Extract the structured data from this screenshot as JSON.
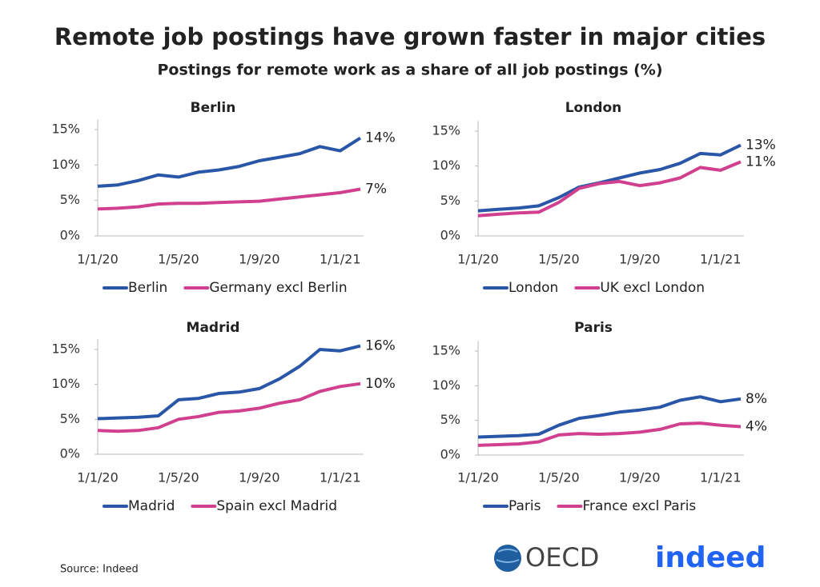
{
  "title": "Remote job postings have grown faster in major cities",
  "subtitle": "Postings for remote work as a share of all job postings (%)",
  "source": "Source: Indeed",
  "logos": [
    "OECD",
    "indeed"
  ],
  "chart_data": [
    {
      "type": "line",
      "title": "Berlin",
      "categories": [
        "1/1/20",
        null,
        null,
        null,
        "1/5/20",
        null,
        null,
        null,
        "1/9/20",
        null,
        null,
        null,
        "1/1/21",
        null
      ],
      "ylim": [
        0,
        16
      ],
      "yticks": [
        {
          "value": 0,
          "label": "0%"
        },
        {
          "value": 5,
          "label": "5%"
        },
        {
          "value": 10,
          "label": "10%"
        },
        {
          "value": 15,
          "label": "15%"
        }
      ],
      "series": [
        {
          "name": "Berlin",
          "color": "#2a56a8",
          "values": [
            7.0,
            7.2,
            7.8,
            8.6,
            8.3,
            9.0,
            9.3,
            9.8,
            10.6,
            11.1,
            11.6,
            12.6,
            12.0,
            13.8
          ],
          "value_labels": [
            null,
            null,
            null,
            null,
            null,
            null,
            null,
            null,
            null,
            null,
            null,
            null,
            null,
            "14%"
          ]
        },
        {
          "name": "Germany excl Berlin",
          "color": "#d0408f",
          "values": [
            3.8,
            3.9,
            4.1,
            4.5,
            4.6,
            4.6,
            4.7,
            4.8,
            4.9,
            5.2,
            5.5,
            5.8,
            6.1,
            6.6
          ],
          "value_labels": [
            null,
            null,
            null,
            null,
            null,
            null,
            null,
            null,
            null,
            null,
            null,
            null,
            null,
            "7%"
          ]
        }
      ]
    },
    {
      "type": "line",
      "title": "London",
      "categories": [
        "1/1/20",
        null,
        null,
        null,
        "1/5/20",
        null,
        null,
        null,
        "1/9/20",
        null,
        null,
        null,
        "1/1/21",
        null
      ],
      "ylim": [
        0,
        16
      ],
      "yticks": [
        {
          "value": 0,
          "label": "0%"
        },
        {
          "value": 5,
          "label": "5%"
        },
        {
          "value": 10,
          "label": "10%"
        },
        {
          "value": 15,
          "label": "15%"
        }
      ],
      "series": [
        {
          "name": "London",
          "color": "#2a56a8",
          "values": [
            3.6,
            3.8,
            4.0,
            4.3,
            5.5,
            7.0,
            7.6,
            8.3,
            9.0,
            9.5,
            10.4,
            11.8,
            11.6,
            13.0
          ],
          "value_labels": [
            null,
            null,
            null,
            null,
            null,
            null,
            null,
            null,
            null,
            null,
            null,
            null,
            null,
            "13%"
          ]
        },
        {
          "name": "UK excl London",
          "color": "#d0408f",
          "values": [
            2.9,
            3.1,
            3.3,
            3.4,
            4.8,
            6.8,
            7.5,
            7.8,
            7.2,
            7.6,
            8.3,
            9.8,
            9.4,
            10.6
          ],
          "value_labels": [
            null,
            null,
            null,
            null,
            null,
            null,
            null,
            null,
            null,
            null,
            null,
            null,
            null,
            "11%"
          ]
        }
      ]
    },
    {
      "type": "line",
      "title": "Madrid",
      "categories": [
        "1/1/20",
        null,
        null,
        null,
        "1/5/20",
        null,
        null,
        null,
        "1/9/20",
        null,
        null,
        null,
        "1/1/21",
        null
      ],
      "ylim": [
        0,
        16
      ],
      "yticks": [
        {
          "value": 0,
          "label": "0%"
        },
        {
          "value": 5,
          "label": "5%"
        },
        {
          "value": 10,
          "label": "10%"
        },
        {
          "value": 15,
          "label": "15%"
        }
      ],
      "series": [
        {
          "name": "Madrid",
          "color": "#2a56a8",
          "values": [
            5.1,
            5.2,
            5.3,
            5.5,
            7.8,
            8.0,
            8.7,
            8.9,
            9.4,
            10.8,
            12.6,
            15.0,
            14.8,
            15.5
          ],
          "value_labels": [
            null,
            null,
            null,
            null,
            null,
            null,
            null,
            null,
            null,
            null,
            null,
            null,
            null,
            "16%"
          ]
        },
        {
          "name": "Spain excl Madrid",
          "color": "#d0408f",
          "values": [
            3.4,
            3.3,
            3.4,
            3.8,
            5.0,
            5.4,
            6.0,
            6.2,
            6.6,
            7.3,
            7.8,
            9.0,
            9.7,
            10.1
          ],
          "value_labels": [
            null,
            null,
            null,
            null,
            null,
            null,
            null,
            null,
            null,
            null,
            null,
            null,
            null,
            "10%"
          ]
        }
      ]
    },
    {
      "type": "line",
      "title": "Paris",
      "categories": [
        "1/1/20",
        null,
        null,
        null,
        "1/5/20",
        null,
        null,
        null,
        "1/9/20",
        null,
        null,
        null,
        "1/1/21",
        null
      ],
      "ylim": [
        0,
        16
      ],
      "yticks": [
        {
          "value": 0,
          "label": "0%"
        },
        {
          "value": 5,
          "label": "5%"
        },
        {
          "value": 10,
          "label": "10%"
        },
        {
          "value": 15,
          "label": "15%"
        }
      ],
      "series": [
        {
          "name": "Paris",
          "color": "#2a56a8",
          "values": [
            2.6,
            2.7,
            2.8,
            3.0,
            4.3,
            5.3,
            5.7,
            6.2,
            6.5,
            6.9,
            7.9,
            8.4,
            7.7,
            8.1
          ],
          "value_labels": [
            null,
            null,
            null,
            null,
            null,
            null,
            null,
            null,
            null,
            null,
            null,
            null,
            null,
            "8%"
          ]
        },
        {
          "name": "France excl Paris",
          "color": "#d0408f",
          "values": [
            1.4,
            1.5,
            1.6,
            1.9,
            2.9,
            3.1,
            3.0,
            3.1,
            3.3,
            3.7,
            4.5,
            4.6,
            4.3,
            4.1
          ],
          "value_labels": [
            null,
            null,
            null,
            null,
            null,
            null,
            null,
            null,
            null,
            null,
            null,
            null,
            null,
            "4%"
          ]
        }
      ]
    }
  ]
}
